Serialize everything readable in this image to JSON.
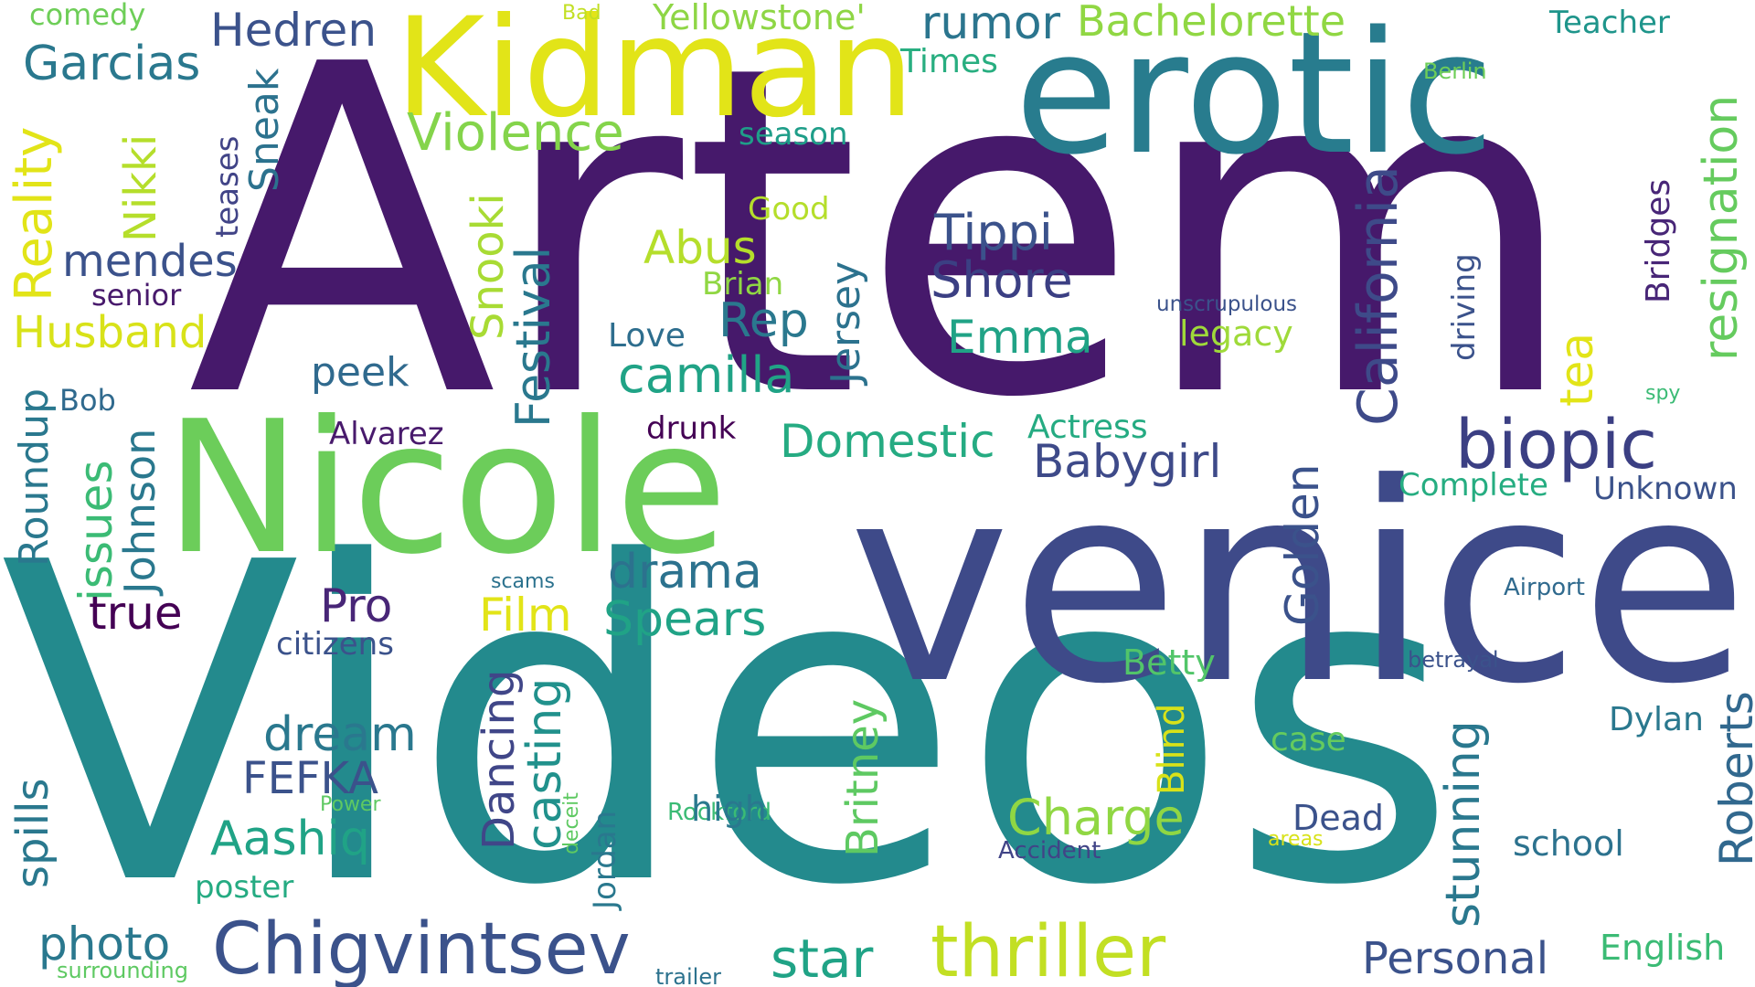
{
  "words": [
    {
      "text": "Artem",
      "color": "#46196b"
    },
    {
      "text": "Videos",
      "color": "#238a8d"
    },
    {
      "text": "venice",
      "color": "#3e4a89"
    },
    {
      "text": "Nicole",
      "color": "#6ccd5a"
    },
    {
      "text": "erotic",
      "color": "#287c8e"
    },
    {
      "text": "Kidman",
      "color": "#e2e418"
    },
    {
      "text": "Chigvintsev",
      "color": "#3b528b"
    },
    {
      "text": "thriller",
      "color": "#c2df23"
    },
    {
      "text": "biopic",
      "color": "#3b3f83"
    },
    {
      "text": "California",
      "color": "#3e4a89"
    },
    {
      "text": "resignation",
      "color": "#65cb5e"
    },
    {
      "text": "Violence",
      "color": "#84d44b"
    },
    {
      "text": "Garcias",
      "color": "#2a788e"
    },
    {
      "text": "Hedren",
      "color": "#3b528b"
    },
    {
      "text": "rumor",
      "color": "#2b758e"
    },
    {
      "text": "Bachelorette",
      "color": "#90d743"
    },
    {
      "text": "Yellowstone'",
      "color": "#8ed645"
    },
    {
      "text": "comedy",
      "color": "#6ece58"
    },
    {
      "text": "Bad",
      "color": "#c2df23"
    },
    {
      "text": "Teacher",
      "color": "#1f958b"
    },
    {
      "text": "Times",
      "color": "#28ae80"
    },
    {
      "text": "Berlin",
      "color": "#6ece58"
    },
    {
      "text": "season",
      "color": "#1f9e89"
    },
    {
      "text": "Reality",
      "color": "#e2e418"
    },
    {
      "text": "teases",
      "color": "#414487"
    },
    {
      "text": "Sneak",
      "color": "#2c728e"
    },
    {
      "text": "Nikki",
      "color": "#b5de2b"
    },
    {
      "text": "Good",
      "color": "#b5de2b"
    },
    {
      "text": "Abus",
      "color": "#b5de2b"
    },
    {
      "text": "Tippi",
      "color": "#3b528b"
    },
    {
      "text": "Bridges",
      "color": "#482677"
    },
    {
      "text": "Shore",
      "color": "#3b3f83"
    },
    {
      "text": "mendes",
      "color": "#3b528b"
    },
    {
      "text": "senior",
      "color": "#481a6c"
    },
    {
      "text": "Brian",
      "color": "#90d743"
    },
    {
      "text": "Jersey",
      "color": "#2c728e"
    },
    {
      "text": "Snooki",
      "color": "#a8db34"
    },
    {
      "text": "Festival",
      "color": "#2a788e"
    },
    {
      "text": "driving",
      "color": "#3b528b"
    },
    {
      "text": "unscrupulous",
      "color": "#3b528b"
    },
    {
      "text": "Husband",
      "color": "#d8e219"
    },
    {
      "text": "Rep",
      "color": "#2a788e"
    },
    {
      "text": "Love",
      "color": "#2e6e8e"
    },
    {
      "text": "Emma",
      "color": "#20a386"
    },
    {
      "text": "legacy",
      "color": "#9fda3a"
    },
    {
      "text": "tea",
      "color": "#e2e418"
    },
    {
      "text": "spy",
      "color": "#3bbb75"
    },
    {
      "text": "camilla",
      "color": "#20a386"
    },
    {
      "text": "peek",
      "color": "#306a8e"
    },
    {
      "text": "Bob",
      "color": "#306a8e"
    },
    {
      "text": "Roundup",
      "color": "#2a788e"
    },
    {
      "text": "Alvarez",
      "color": "#481a6c"
    },
    {
      "text": "drunk",
      "color": "#440154"
    },
    {
      "text": "Domestic",
      "color": "#25ab82"
    },
    {
      "text": "Actress",
      "color": "#25ab82"
    },
    {
      "text": "Babygirl",
      "color": "#3e4a89"
    },
    {
      "text": "Complete",
      "color": "#26ad81"
    },
    {
      "text": "Unknown",
      "color": "#3b528b"
    },
    {
      "text": "Golden",
      "color": "#3b528b"
    },
    {
      "text": "issues",
      "color": "#3bbb75"
    },
    {
      "text": "Johnson",
      "color": "#2a788e"
    },
    {
      "text": "drama",
      "color": "#2c728e"
    },
    {
      "text": "true",
      "color": "#440154"
    },
    {
      "text": "Pro",
      "color": "#482677"
    },
    {
      "text": "Film",
      "color": "#e2e418"
    },
    {
      "text": "Spears",
      "color": "#20a386"
    },
    {
      "text": "scams",
      "color": "#2c728e"
    },
    {
      "text": "Airport",
      "color": "#306a8e"
    },
    {
      "text": "citizens",
      "color": "#3b528b"
    },
    {
      "text": "betrayal",
      "color": "#3b528b"
    },
    {
      "text": "Betty",
      "color": "#52c569"
    },
    {
      "text": "Dancing",
      "color": "#404688"
    },
    {
      "text": "casting",
      "color": "#21918c"
    },
    {
      "text": "dream",
      "color": "#2a788e"
    },
    {
      "text": "Britney",
      "color": "#5ec962"
    },
    {
      "text": "stunning",
      "color": "#2a788e"
    },
    {
      "text": "Roberts",
      "color": "#31688e"
    },
    {
      "text": "Dylan",
      "color": "#2a788e"
    },
    {
      "text": "FEFKA",
      "color": "#3b528b"
    },
    {
      "text": "Blind",
      "color": "#d8e219"
    },
    {
      "text": "case",
      "color": "#65cb5e"
    },
    {
      "text": "Charge",
      "color": "#90d743"
    },
    {
      "text": "Rockford",
      "color": "#3bbb75"
    },
    {
      "text": "high",
      "color": "#2a788e"
    },
    {
      "text": "Aashiq",
      "color": "#20a386"
    },
    {
      "text": "Power",
      "color": "#5ec962"
    },
    {
      "text": "spills",
      "color": "#2a788e"
    },
    {
      "text": "deceit",
      "color": "#5ec962"
    },
    {
      "text": "Jordan",
      "color": "#2a788e"
    },
    {
      "text": "Dead",
      "color": "#3b528b"
    },
    {
      "text": "areas",
      "color": "#d8e219"
    },
    {
      "text": "Accident",
      "color": "#414487"
    },
    {
      "text": "school",
      "color": "#2c728e"
    },
    {
      "text": "poster",
      "color": "#25ab82"
    },
    {
      "text": "photo",
      "color": "#2a788e"
    },
    {
      "text": "star",
      "color": "#20a386"
    },
    {
      "text": "Personal",
      "color": "#3b528b"
    },
    {
      "text": "English",
      "color": "#3bbb75"
    },
    {
      "text": "surrounding",
      "color": "#5ec962"
    },
    {
      "text": "trailer",
      "color": "#2c728e"
    }
  ]
}
